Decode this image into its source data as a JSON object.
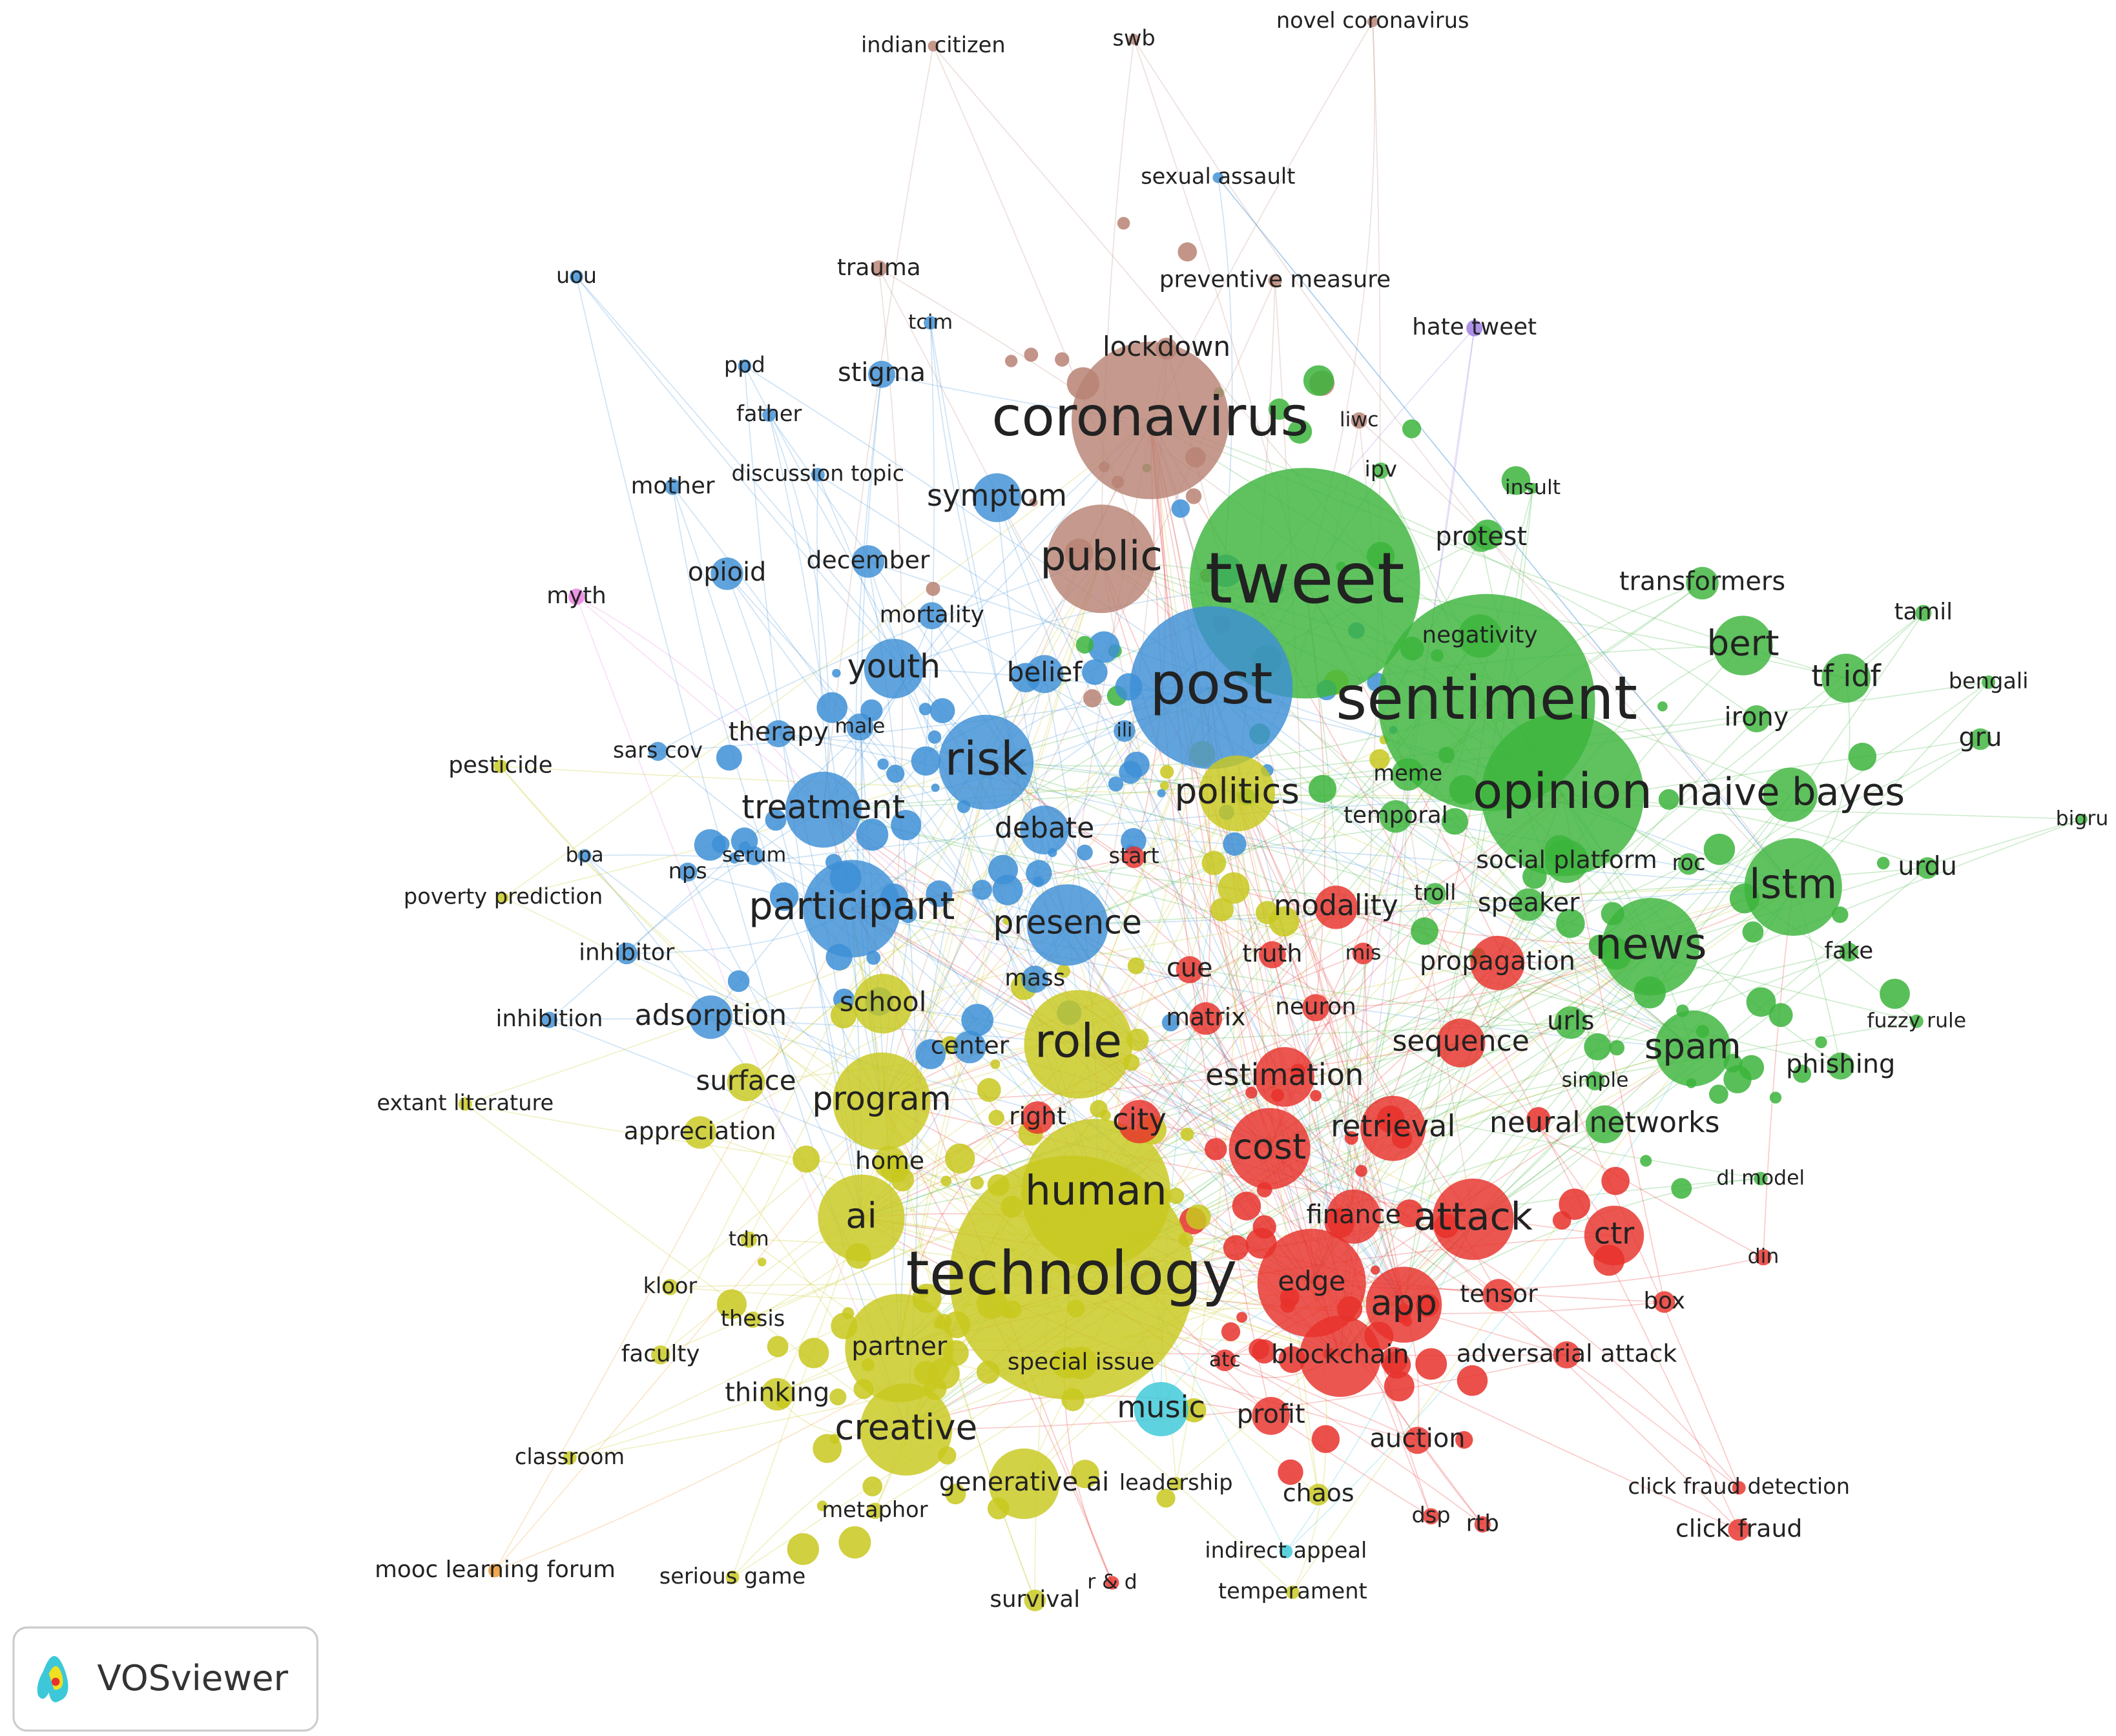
{
  "nodes": [
    {
      "label": "coronavirus",
      "color": "#b88274"
    },
    {
      "label": "lockdown",
      "color": "#b88274"
    },
    {
      "label": "public",
      "color": "#b88274"
    },
    {
      "label": "trauma",
      "color": "#b88274"
    },
    {
      "label": "novel coronavirus",
      "color": "#b88274"
    },
    {
      "label": "swb",
      "color": "#b88274"
    },
    {
      "label": "indian citizen",
      "color": "#b88274"
    },
    {
      "label": "preventive measure",
      "color": "#b88274"
    },
    {
      "label": "liwc",
      "color": "#b88274"
    },
    {
      "label": "sexual assault",
      "color": "#3d8fd6"
    },
    {
      "label": "uou",
      "color": "#3d8fd6"
    },
    {
      "label": "tcim",
      "color": "#3d8fd6"
    },
    {
      "label": "ppd",
      "color": "#3d8fd6"
    },
    {
      "label": "stigma",
      "color": "#3d8fd6"
    },
    {
      "label": "father",
      "color": "#3d8fd6"
    },
    {
      "label": "discussion topic",
      "color": "#3d8fd6"
    },
    {
      "label": "mother",
      "color": "#3d8fd6"
    },
    {
      "label": "symptom",
      "color": "#3d8fd6"
    },
    {
      "label": "december",
      "color": "#3d8fd6"
    },
    {
      "label": "opioid",
      "color": "#3d8fd6"
    },
    {
      "label": "mortality",
      "color": "#3d8fd6"
    },
    {
      "label": "youth",
      "color": "#3d8fd6"
    },
    {
      "label": "belief",
      "color": "#3d8fd6"
    },
    {
      "label": "post",
      "color": "#3d8fd6"
    },
    {
      "label": "risk",
      "color": "#3d8fd6"
    },
    {
      "label": "therapy",
      "color": "#3d8fd6"
    },
    {
      "label": "male",
      "color": "#3d8fd6"
    },
    {
      "label": "sars cov",
      "color": "#3d8fd6"
    },
    {
      "label": "treatment",
      "color": "#3d8fd6"
    },
    {
      "label": "debate",
      "color": "#3d8fd6"
    },
    {
      "label": "serum",
      "color": "#3d8fd6"
    },
    {
      "label": "nps",
      "color": "#3d8fd6"
    },
    {
      "label": "bpa",
      "color": "#3d8fd6"
    },
    {
      "label": "participant",
      "color": "#3d8fd6"
    },
    {
      "label": "presence",
      "color": "#3d8fd6"
    },
    {
      "label": "mass",
      "color": "#3d8fd6"
    },
    {
      "label": "inhibitor",
      "color": "#3d8fd6"
    },
    {
      "label": "inhibition",
      "color": "#3d8fd6"
    },
    {
      "label": "adsorption",
      "color": "#3d8fd6"
    },
    {
      "label": "center",
      "color": "#3d8fd6"
    },
    {
      "label": "ili",
      "color": "#3d8fd6"
    },
    {
      "label": "tweet",
      "color": "#3cb43c"
    },
    {
      "label": "sentiment",
      "color": "#3cb43c"
    },
    {
      "label": "opinion",
      "color": "#3cb43c"
    },
    {
      "label": "naive bayes",
      "color": "#3cb43c"
    },
    {
      "label": "lstm",
      "color": "#3cb43c"
    },
    {
      "label": "news",
      "color": "#3cb43c"
    },
    {
      "label": "bert",
      "color": "#3cb43c"
    },
    {
      "label": "tf idf",
      "color": "#3cb43c"
    },
    {
      "label": "irony",
      "color": "#3cb43c"
    },
    {
      "label": "transformers",
      "color": "#3cb43c"
    },
    {
      "label": "tamil",
      "color": "#3cb43c"
    },
    {
      "label": "bengali",
      "color": "#3cb43c"
    },
    {
      "label": "gru",
      "color": "#3cb43c"
    },
    {
      "label": "bigru",
      "color": "#3cb43c"
    },
    {
      "label": "urdu",
      "color": "#3cb43c"
    },
    {
      "label": "fake",
      "color": "#3cb43c"
    },
    {
      "label": "fuzzy rule",
      "color": "#3cb43c"
    },
    {
      "label": "phishing",
      "color": "#3cb43c"
    },
    {
      "label": "spam",
      "color": "#3cb43c"
    },
    {
      "label": "urls",
      "color": "#3cb43c"
    },
    {
      "label": "simple",
      "color": "#3cb43c"
    },
    {
      "label": "neural networks",
      "color": "#3cb43c"
    },
    {
      "label": "dl model",
      "color": "#3cb43c"
    },
    {
      "label": "insult",
      "color": "#3cb43c"
    },
    {
      "label": "negativity",
      "color": "#3cb43c"
    },
    {
      "label": "protest",
      "color": "#3cb43c"
    },
    {
      "label": "ipv",
      "color": "#3cb43c"
    },
    {
      "label": "meme",
      "color": "#3cb43c"
    },
    {
      "label": "temporal",
      "color": "#3cb43c"
    },
    {
      "label": "social platform",
      "color": "#3cb43c"
    },
    {
      "label": "roc",
      "color": "#3cb43c"
    },
    {
      "label": "speaker",
      "color": "#3cb43c"
    },
    {
      "label": "troll",
      "color": "#3cb43c"
    },
    {
      "label": "hate tweet",
      "color": "#9a7be0"
    },
    {
      "label": "myth",
      "color": "#e87ee0"
    },
    {
      "label": "politics",
      "color": "#c8c81e"
    },
    {
      "label": "start",
      "color": "#e8312b"
    },
    {
      "label": "modality",
      "color": "#e8312b"
    },
    {
      "label": "truth",
      "color": "#e8312b"
    },
    {
      "label": "mis",
      "color": "#e8312b"
    },
    {
      "label": "propagation",
      "color": "#e8312b"
    },
    {
      "label": "cue",
      "color": "#e8312b"
    },
    {
      "label": "neuron",
      "color": "#e8312b"
    },
    {
      "label": "matrix",
      "color": "#e8312b"
    },
    {
      "label": "sequence",
      "color": "#e8312b"
    },
    {
      "label": "estimation",
      "color": "#e8312b"
    },
    {
      "label": "retrieval",
      "color": "#e8312b"
    },
    {
      "label": "city",
      "color": "#e8312b"
    },
    {
      "label": "cost",
      "color": "#e8312b"
    },
    {
      "label": "attack",
      "color": "#e8312b"
    },
    {
      "label": "finance",
      "color": "#e8312b"
    },
    {
      "label": "ctr",
      "color": "#e8312b"
    },
    {
      "label": "din",
      "color": "#e8312b"
    },
    {
      "label": "edge",
      "color": "#e8312b"
    },
    {
      "label": "app",
      "color": "#e8312b"
    },
    {
      "label": "tensor",
      "color": "#e8312b"
    },
    {
      "label": "box",
      "color": "#e8312b"
    },
    {
      "label": "blockchain",
      "color": "#e8312b"
    },
    {
      "label": "adversarial attack",
      "color": "#e8312b"
    },
    {
      "label": "atc",
      "color": "#e8312b"
    },
    {
      "label": "profit",
      "color": "#e8312b"
    },
    {
      "label": "auction",
      "color": "#e8312b"
    },
    {
      "label": "click fraud detection",
      "color": "#e8312b"
    },
    {
      "label": "click fraud",
      "color": "#e8312b"
    },
    {
      "label": "dsp",
      "color": "#e8312b"
    },
    {
      "label": "rtb",
      "color": "#e8312b"
    },
    {
      "label": "r & d",
      "color": "#e8312b"
    },
    {
      "label": "right",
      "color": "#e8312b"
    },
    {
      "label": "role",
      "color": "#c8c81e"
    },
    {
      "label": "human",
      "color": "#c8c81e"
    },
    {
      "label": "technology",
      "color": "#c8c81e"
    },
    {
      "label": "ai",
      "color": "#c8c81e"
    },
    {
      "label": "program",
      "color": "#c8c81e"
    },
    {
      "label": "school",
      "color": "#c8c81e"
    },
    {
      "label": "surface",
      "color": "#c8c81e"
    },
    {
      "label": "appreciation",
      "color": "#c8c81e"
    },
    {
      "label": "home",
      "color": "#c8c81e"
    },
    {
      "label": "tdm",
      "color": "#c8c81e"
    },
    {
      "label": "kloor",
      "color": "#c8c81e"
    },
    {
      "label": "thesis",
      "color": "#c8c81e"
    },
    {
      "label": "faculty",
      "color": "#c8c81e"
    },
    {
      "label": "partner",
      "color": "#c8c81e"
    },
    {
      "label": "special issue",
      "color": "#c8c81e"
    },
    {
      "label": "thinking",
      "color": "#c8c81e"
    },
    {
      "label": "creative",
      "color": "#c8c81e"
    },
    {
      "label": "generative ai",
      "color": "#c8c81e"
    },
    {
      "label": "leadership",
      "color": "#c8c81e"
    },
    {
      "label": "metaphor",
      "color": "#c8c81e"
    },
    {
      "label": "chaos",
      "color": "#c8c81e"
    },
    {
      "label": "serious game",
      "color": "#c8c81e"
    },
    {
      "label": "survival",
      "color": "#c8c81e"
    },
    {
      "label": "temperament",
      "color": "#c8c81e"
    },
    {
      "label": "classroom",
      "color": "#c8c81e"
    },
    {
      "label": "extant literature",
      "color": "#c8c81e"
    },
    {
      "label": "pesticide",
      "color": "#c8c81e"
    },
    {
      "label": "poverty prediction",
      "color": "#c8c81e"
    },
    {
      "label": "music",
      "color": "#3cc8d8"
    },
    {
      "label": "indirect appeal",
      "color": "#3cc8d8"
    },
    {
      "label": "mooc learning forum",
      "color": "#f0962a"
    }
  ],
  "logo": {
    "text": "VOSviewer"
  }
}
